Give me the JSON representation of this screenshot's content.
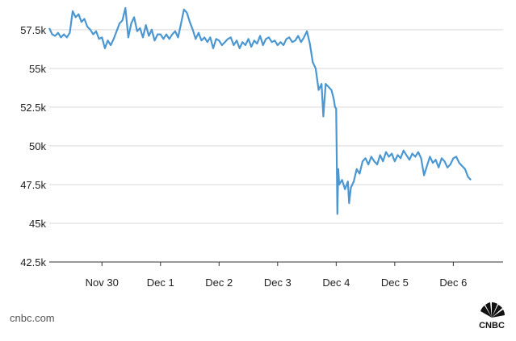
{
  "source_label": "cnbc.com",
  "logo": {
    "text": "CNBC",
    "icon": "nbc-peacock-icon"
  },
  "colors": {
    "line": "#4a97d2",
    "grid": "#d9d9d9",
    "text": "#222222",
    "axis": "#333333"
  },
  "chart_data": {
    "type": "line",
    "title": "",
    "xlabel": "",
    "ylabel": "",
    "grid": "horizontal",
    "x_unit": "days",
    "xlim": [
      -1.9,
      5.85
    ],
    "ylim": [
      42500,
      59000
    ],
    "y_ticks": [
      42500,
      45000,
      47500,
      50000,
      52500,
      55000,
      57500
    ],
    "y_tick_labels": [
      "42.5k",
      "45k",
      "47.5k",
      "50k",
      "52.5k",
      "55k",
      "57.5k"
    ],
    "x_ticks": [
      -1,
      0,
      1,
      2,
      3,
      4,
      5
    ],
    "x_tick_labels": [
      "Nov 30",
      "Dec 1",
      "Dec 2",
      "Dec 3",
      "Dec 4",
      "Dec 5",
      "Dec 6"
    ],
    "series": [
      {
        "values": [
          [
            -1.9,
            57600
          ],
          [
            -1.85,
            57200
          ],
          [
            -1.8,
            57100
          ],
          [
            -1.75,
            57300
          ],
          [
            -1.7,
            57000
          ],
          [
            -1.65,
            57200
          ],
          [
            -1.6,
            57000
          ],
          [
            -1.55,
            57300
          ],
          [
            -1.5,
            58700
          ],
          [
            -1.45,
            58300
          ],
          [
            -1.4,
            58500
          ],
          [
            -1.35,
            58000
          ],
          [
            -1.3,
            58200
          ],
          [
            -1.25,
            57700
          ],
          [
            -1.2,
            57500
          ],
          [
            -1.15,
            57200
          ],
          [
            -1.1,
            57400
          ],
          [
            -1.05,
            56900
          ],
          [
            -1.0,
            57000
          ],
          [
            -0.95,
            56300
          ],
          [
            -0.9,
            56800
          ],
          [
            -0.85,
            56500
          ],
          [
            -0.8,
            56900
          ],
          [
            -0.75,
            57400
          ],
          [
            -0.7,
            57900
          ],
          [
            -0.65,
            58100
          ],
          [
            -0.6,
            58900
          ],
          [
            -0.55,
            57000
          ],
          [
            -0.5,
            57900
          ],
          [
            -0.45,
            58300
          ],
          [
            -0.4,
            57400
          ],
          [
            -0.35,
            57600
          ],
          [
            -0.3,
            57000
          ],
          [
            -0.25,
            57800
          ],
          [
            -0.2,
            57100
          ],
          [
            -0.15,
            57500
          ],
          [
            -0.1,
            56800
          ],
          [
            -0.05,
            57200
          ],
          [
            0.0,
            57200
          ],
          [
            0.05,
            56900
          ],
          [
            0.1,
            57200
          ],
          [
            0.15,
            56900
          ],
          [
            0.2,
            57200
          ],
          [
            0.25,
            57400
          ],
          [
            0.3,
            57000
          ],
          [
            0.35,
            57900
          ],
          [
            0.4,
            58800
          ],
          [
            0.45,
            58600
          ],
          [
            0.5,
            58000
          ],
          [
            0.55,
            57500
          ],
          [
            0.6,
            56900
          ],
          [
            0.65,
            57300
          ],
          [
            0.7,
            56800
          ],
          [
            0.75,
            57000
          ],
          [
            0.8,
            56700
          ],
          [
            0.85,
            57000
          ],
          [
            0.9,
            56300
          ],
          [
            0.95,
            56900
          ],
          [
            1.0,
            56800
          ],
          [
            1.05,
            56500
          ],
          [
            1.1,
            56700
          ],
          [
            1.15,
            56900
          ],
          [
            1.2,
            57000
          ],
          [
            1.25,
            56500
          ],
          [
            1.3,
            56800
          ],
          [
            1.35,
            56300
          ],
          [
            1.4,
            56700
          ],
          [
            1.45,
            56500
          ],
          [
            1.5,
            56900
          ],
          [
            1.55,
            56400
          ],
          [
            1.6,
            56800
          ],
          [
            1.65,
            56600
          ],
          [
            1.7,
            57100
          ],
          [
            1.75,
            56500
          ],
          [
            1.8,
            56900
          ],
          [
            1.85,
            57000
          ],
          [
            1.9,
            56700
          ],
          [
            1.95,
            56800
          ],
          [
            2.0,
            56500
          ],
          [
            2.05,
            56700
          ],
          [
            2.1,
            56500
          ],
          [
            2.15,
            56900
          ],
          [
            2.2,
            57000
          ],
          [
            2.25,
            56700
          ],
          [
            2.3,
            56800
          ],
          [
            2.35,
            57100
          ],
          [
            2.4,
            56700
          ],
          [
            2.45,
            57000
          ],
          [
            2.5,
            57400
          ],
          [
            2.55,
            56600
          ],
          [
            2.6,
            55400
          ],
          [
            2.65,
            55000
          ],
          [
            2.7,
            53600
          ],
          [
            2.75,
            54000
          ],
          [
            2.78,
            51900
          ],
          [
            2.82,
            54000
          ],
          [
            2.87,
            53800
          ],
          [
            2.92,
            53600
          ],
          [
            2.96,
            53000
          ],
          [
            2.98,
            52500
          ],
          [
            3.0,
            52400
          ],
          [
            3.01,
            48900
          ],
          [
            3.02,
            45600
          ],
          [
            3.035,
            48500
          ],
          [
            3.05,
            47500
          ],
          [
            3.1,
            47800
          ],
          [
            3.15,
            47200
          ],
          [
            3.2,
            47700
          ],
          [
            3.22,
            46300
          ],
          [
            3.25,
            47300
          ],
          [
            3.3,
            47700
          ],
          [
            3.35,
            48500
          ],
          [
            3.4,
            48200
          ],
          [
            3.45,
            49000
          ],
          [
            3.5,
            49200
          ],
          [
            3.55,
            48800
          ],
          [
            3.6,
            49300
          ],
          [
            3.65,
            49000
          ],
          [
            3.7,
            48800
          ],
          [
            3.75,
            49400
          ],
          [
            3.8,
            49000
          ],
          [
            3.85,
            49600
          ],
          [
            3.9,
            49300
          ],
          [
            3.95,
            49500
          ],
          [
            4.0,
            49000
          ],
          [
            4.05,
            49400
          ],
          [
            4.1,
            49200
          ],
          [
            4.15,
            49700
          ],
          [
            4.2,
            49400
          ],
          [
            4.25,
            49100
          ],
          [
            4.3,
            49500
          ],
          [
            4.35,
            49300
          ],
          [
            4.4,
            49600
          ],
          [
            4.45,
            49200
          ],
          [
            4.5,
            48100
          ],
          [
            4.55,
            48700
          ],
          [
            4.6,
            49300
          ],
          [
            4.65,
            48900
          ],
          [
            4.7,
            49100
          ],
          [
            4.75,
            48600
          ],
          [
            4.8,
            49200
          ],
          [
            4.85,
            49000
          ],
          [
            4.9,
            48600
          ],
          [
            4.95,
            48800
          ],
          [
            5.0,
            49200
          ],
          [
            5.05,
            49300
          ],
          [
            5.1,
            48900
          ],
          [
            5.15,
            48700
          ],
          [
            5.2,
            48500
          ],
          [
            5.25,
            48000
          ],
          [
            5.3,
            47800
          ]
        ]
      }
    ]
  }
}
